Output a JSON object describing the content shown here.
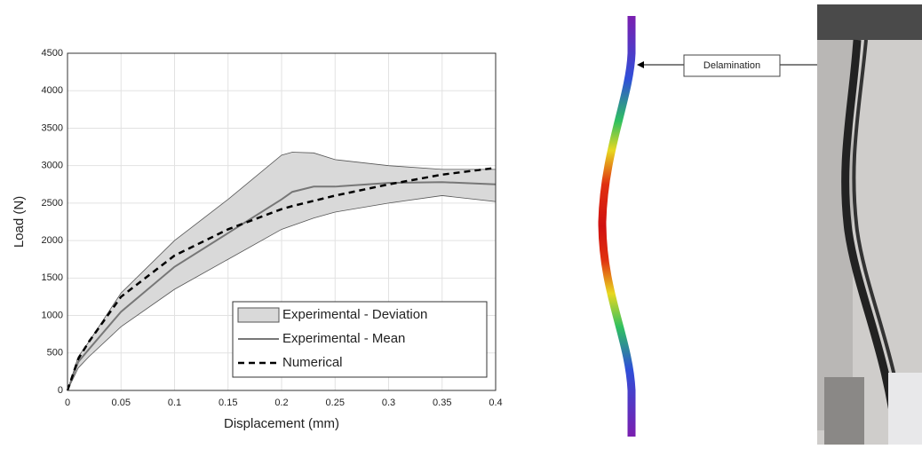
{
  "chart_data": {
    "type": "band-line",
    "xlabel": "Displacement (mm)",
    "ylabel": "Load (N)",
    "x": [
      0,
      0.01,
      0.02,
      0.05,
      0.1,
      0.15,
      0.2,
      0.21,
      0.23,
      0.25,
      0.3,
      0.35,
      0.4
    ],
    "series": [
      {
        "name": "Experimental - Deviation",
        "color": "#d9d9d9",
        "upper": [
          0,
          450,
          650,
          1300,
          2000,
          2550,
          3140,
          3180,
          3170,
          3080,
          3000,
          2950,
          2950
        ],
        "lower": [
          0,
          300,
          450,
          850,
          1350,
          1750,
          2150,
          2200,
          2300,
          2380,
          2500,
          2600,
          2520
        ]
      },
      {
        "name": "Experimental - Mean",
        "color": "#777777",
        "values": [
          0,
          380,
          550,
          1050,
          1650,
          2100,
          2550,
          2650,
          2720,
          2720,
          2770,
          2780,
          2750
        ]
      },
      {
        "name": "Numerical",
        "color": "#000000",
        "values": [
          0,
          420,
          650,
          1250,
          1800,
          2150,
          2420,
          2460,
          2530,
          2600,
          2750,
          2880,
          2970
        ]
      }
    ],
    "xlim": [
      0,
      0.4
    ],
    "xticks": [
      0,
      0.05,
      0.1,
      0.15,
      0.2,
      0.25,
      0.3,
      0.35,
      0.4
    ],
    "ylim": [
      0,
      4500
    ],
    "yticks": [
      0,
      500,
      1000,
      1500,
      2000,
      2500,
      3000,
      3500,
      4000,
      4500
    ],
    "grid": true,
    "legend": "lower right"
  },
  "figure": {
    "annotation": "Delamination"
  }
}
